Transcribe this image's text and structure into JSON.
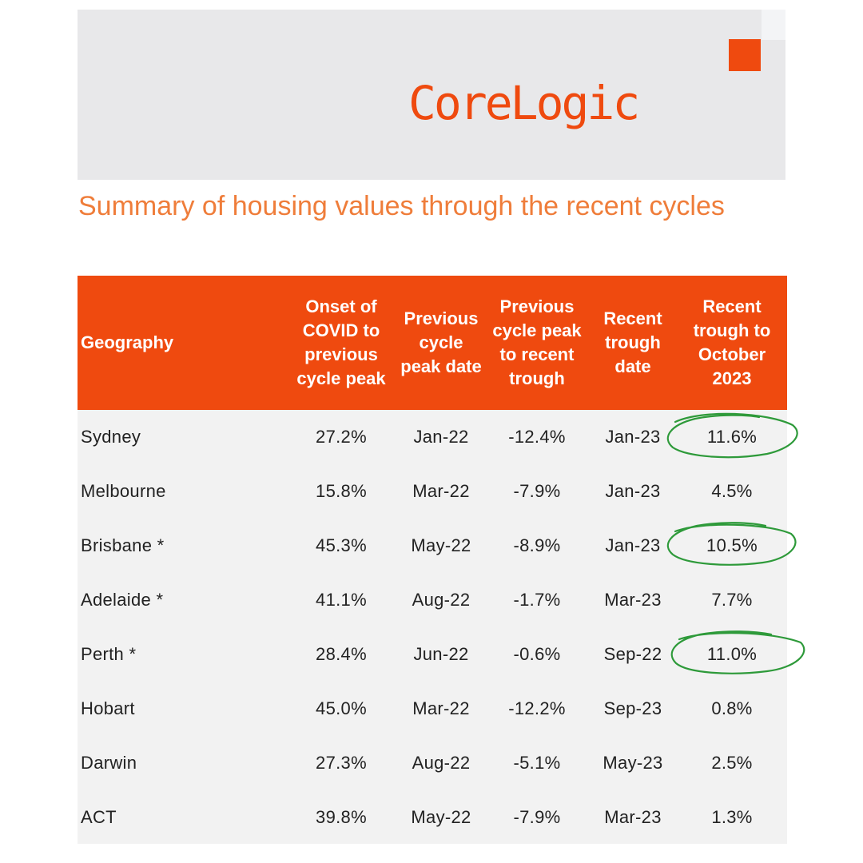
{
  "brand": {
    "logo_text": "CoreLogic",
    "accent_color": "#ef4a0f",
    "title_color": "#ef7d3a"
  },
  "title": "Summary of housing values through the recent cycles",
  "table": {
    "headers": [
      "Geography",
      "Onset of COVID to previous cycle peak",
      "Previous cycle peak date",
      "Previous cycle peak to recent trough",
      "Recent trough date",
      "Recent trough to October 2023"
    ],
    "rows": [
      [
        "Sydney",
        "27.2%",
        "Jan-22",
        "-12.4%",
        "Jan-23",
        "11.6%"
      ],
      [
        "Melbourne",
        "15.8%",
        "Mar-22",
        "-7.9%",
        "Jan-23",
        "4.5%"
      ],
      [
        "Brisbane *",
        "45.3%",
        "May-22",
        "-8.9%",
        "Jan-23",
        "10.5%"
      ],
      [
        "Adelaide *",
        "41.1%",
        "Aug-22",
        "-1.7%",
        "Mar-23",
        "7.7%"
      ],
      [
        "Perth *",
        "28.4%",
        "Jun-22",
        "-0.6%",
        "Sep-22",
        "11.0%"
      ],
      [
        "Hobart",
        "45.0%",
        "Mar-22",
        "-12.2%",
        "Sep-23",
        "0.8%"
      ],
      [
        "Darwin",
        "27.3%",
        "Aug-22",
        "-5.1%",
        "May-23",
        "2.5%"
      ],
      [
        "ACT",
        "39.8%",
        "May-22",
        "-7.9%",
        "Mar-23",
        "1.3%"
      ]
    ]
  },
  "annotations": {
    "circle_color": "#2e9a3a"
  }
}
